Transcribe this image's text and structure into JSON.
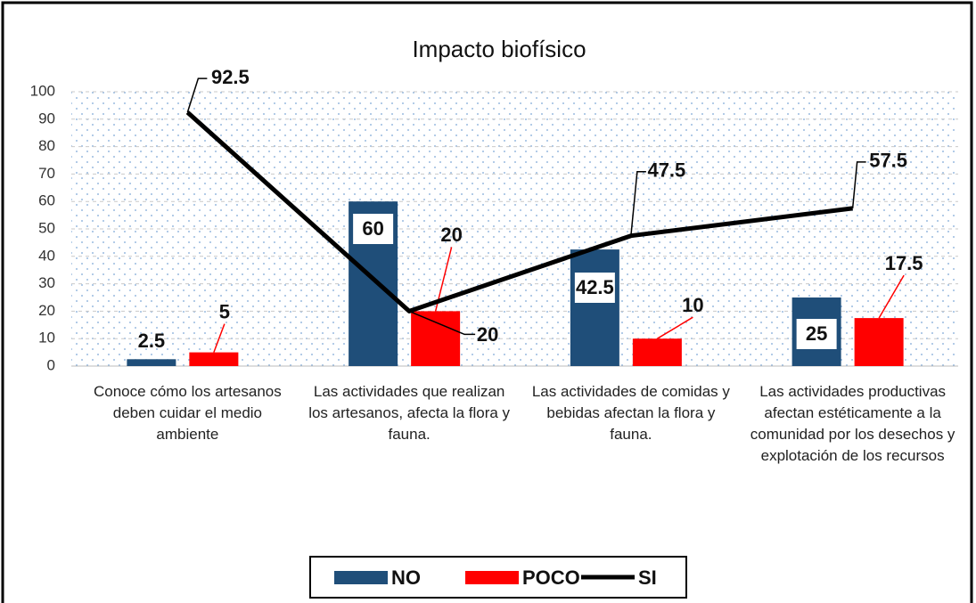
{
  "chart_data": {
    "type": "bar",
    "title": "Impacto biofísico",
    "categories": [
      "Conoce cómo los artesanos deben cuidar el medio ambiente",
      "Las actividades que realizan los artesanos, afecta la flora y fauna.",
      "Las actividades de comidas y bebidas afectan la flora y fauna.",
      "Las actividades productivas afectan estéticamente a la comunidad por los desechos y explotación de los recursos"
    ],
    "series": [
      {
        "name": "NO",
        "type": "bar",
        "color": "#1f4e79",
        "values": [
          2.5,
          60,
          42.5,
          25
        ]
      },
      {
        "name": "POCO",
        "type": "bar",
        "color": "#ff0000",
        "values": [
          5,
          20,
          10,
          17.5
        ]
      },
      {
        "name": "SI",
        "type": "line",
        "color": "#000000",
        "values": [
          92.5,
          20,
          47.5,
          57.5
        ]
      }
    ],
    "ylim": [
      0,
      100
    ],
    "yticks": [
      0,
      10,
      20,
      30,
      40,
      50,
      60,
      70,
      80,
      90,
      100
    ],
    "grid": true,
    "legend": "bottom"
  }
}
